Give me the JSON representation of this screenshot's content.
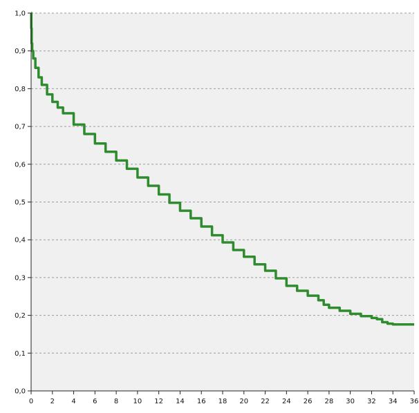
{
  "chart_data": {
    "type": "line",
    "title": "",
    "xlabel": "",
    "ylabel": "",
    "xlim": [
      0,
      36
    ],
    "ylim": [
      0,
      1.0
    ],
    "grid": "horizontal dashed",
    "x_ticks": [
      "0",
      "2",
      "4",
      "6",
      "8",
      "10",
      "12",
      "14",
      "16",
      "18",
      "20",
      "22",
      "24",
      "26",
      "28",
      "30",
      "32",
      "34",
      "36"
    ],
    "y_ticks": [
      "0,0",
      "0,1",
      "0,2",
      "0,3",
      "0,4",
      "0,5",
      "0,6",
      "0,7",
      "0,8",
      "0,9",
      "1,0"
    ],
    "series": [
      {
        "color": "#2e8b2e",
        "step": true,
        "x": [
          0,
          0.02,
          0.05,
          0.1,
          0.2,
          0.4,
          0.7,
          1,
          1.5,
          2,
          2.5,
          3,
          4,
          5,
          6,
          7,
          8,
          9,
          10,
          11,
          12,
          13,
          14,
          15,
          16,
          17,
          18,
          19,
          20,
          21,
          22,
          23,
          24,
          25,
          26,
          27,
          27.5,
          28,
          29,
          30,
          31,
          32,
          32.5,
          33,
          33.5,
          34,
          36
        ],
        "y": [
          1.0,
          0.96,
          0.92,
          0.9,
          0.88,
          0.855,
          0.83,
          0.81,
          0.785,
          0.765,
          0.75,
          0.735,
          0.705,
          0.68,
          0.655,
          0.633,
          0.61,
          0.588,
          0.565,
          0.543,
          0.52,
          0.498,
          0.477,
          0.457,
          0.435,
          0.412,
          0.393,
          0.373,
          0.355,
          0.335,
          0.318,
          0.298,
          0.278,
          0.265,
          0.252,
          0.24,
          0.228,
          0.22,
          0.212,
          0.204,
          0.198,
          0.193,
          0.19,
          0.182,
          0.178,
          0.176,
          0.176
        ]
      }
    ]
  },
  "colors": {
    "plot_background": "#f0f0f0",
    "gridline": "#9a9a9a",
    "axis": "#222222",
    "line": "#2e8b2e"
  }
}
